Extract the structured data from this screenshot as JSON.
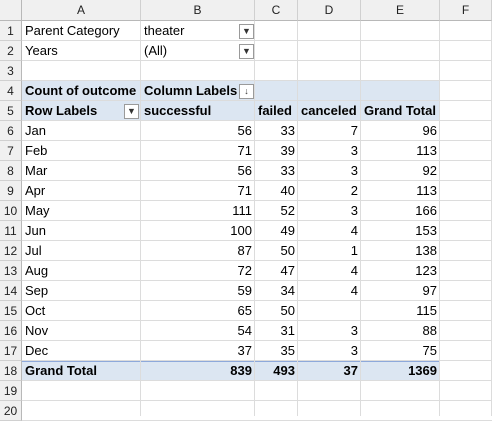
{
  "columns": [
    "A",
    "B",
    "C",
    "D",
    "E",
    "F"
  ],
  "rows": [
    "1",
    "2",
    "3",
    "4",
    "5",
    "6",
    "7",
    "8",
    "9",
    "10",
    "11",
    "12",
    "13",
    "14",
    "15",
    "16",
    "17",
    "18",
    "19",
    "20"
  ],
  "filters": [
    {
      "label": "Parent Category",
      "value": "theater"
    },
    {
      "label": "Years",
      "value": "(All)"
    }
  ],
  "pivot": {
    "values_label": "Count of outcome",
    "column_labels": "Column Labels",
    "row_labels": "Row Labels",
    "headers": [
      "successful",
      "failed",
      "canceled",
      "Grand Total"
    ],
    "rows": [
      {
        "label": "Jan",
        "successful": "56",
        "failed": "33",
        "canceled": "7",
        "total": "96"
      },
      {
        "label": "Feb",
        "successful": "71",
        "failed": "39",
        "canceled": "3",
        "total": "113"
      },
      {
        "label": "Mar",
        "successful": "56",
        "failed": "33",
        "canceled": "3",
        "total": "92"
      },
      {
        "label": "Apr",
        "successful": "71",
        "failed": "40",
        "canceled": "2",
        "total": "113"
      },
      {
        "label": "May",
        "successful": "111",
        "failed": "52",
        "canceled": "3",
        "total": "166"
      },
      {
        "label": "Jun",
        "successful": "100",
        "failed": "49",
        "canceled": "4",
        "total": "153"
      },
      {
        "label": "Jul",
        "successful": "87",
        "failed": "50",
        "canceled": "1",
        "total": "138"
      },
      {
        "label": "Aug",
        "successful": "72",
        "failed": "47",
        "canceled": "4",
        "total": "123"
      },
      {
        "label": "Sep",
        "successful": "59",
        "failed": "34",
        "canceled": "4",
        "total": "97"
      },
      {
        "label": "Oct",
        "successful": "65",
        "failed": "50",
        "canceled": "",
        "total": "115"
      },
      {
        "label": "Nov",
        "successful": "54",
        "failed": "31",
        "canceled": "3",
        "total": "88"
      },
      {
        "label": "Dec",
        "successful": "37",
        "failed": "35",
        "canceled": "3",
        "total": "75"
      }
    ],
    "grand_total": {
      "label": "Grand Total",
      "successful": "839",
      "failed": "493",
      "canceled": "37",
      "total": "1369"
    }
  },
  "colors": {
    "header_band": "#dce6f2",
    "grid": "#dcdcdc",
    "header_bg": "#f0f0f0"
  },
  "icons": {
    "filter_applied": "funnel-dropdown-icon",
    "dropdown": "chevron-down-icon",
    "sort_filter": "sort-filter-icon"
  }
}
